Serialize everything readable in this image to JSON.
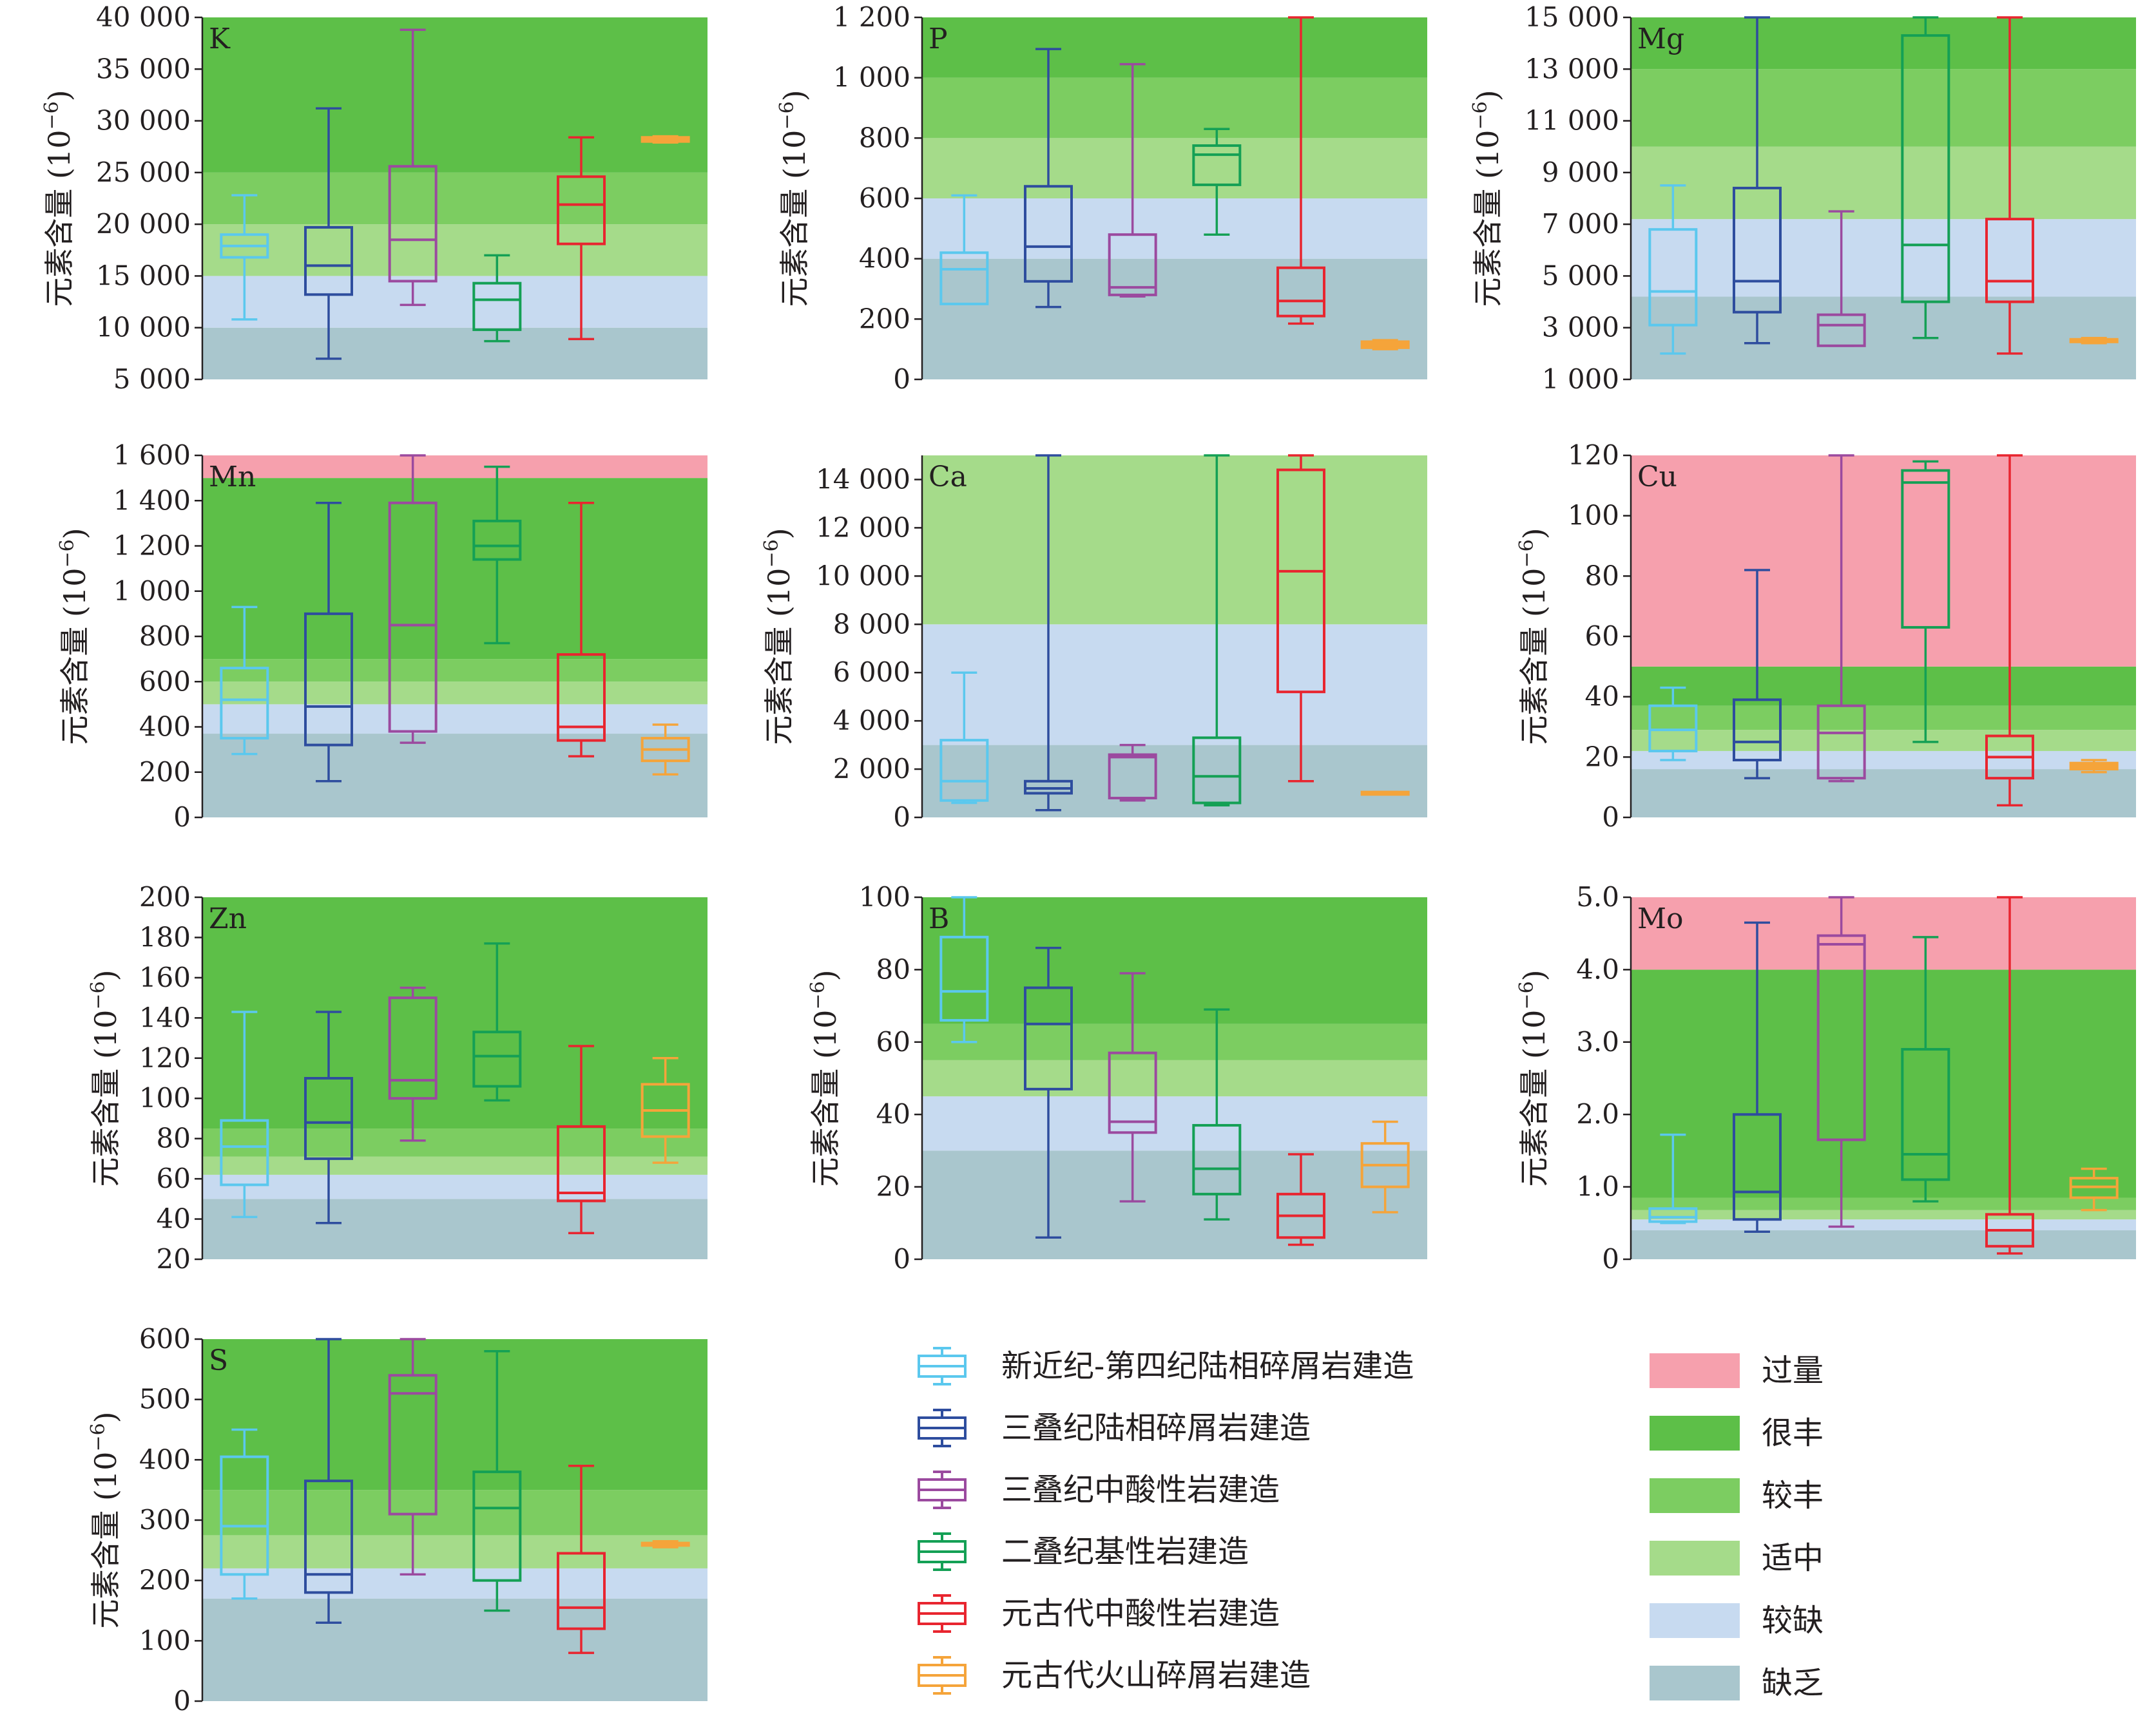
{
  "figure": {
    "ylabel_text": "元素含量 (10",
    "ylabel_exp": "−6",
    "ylabel_close": ")"
  },
  "legend": {
    "formations": [
      {
        "label": "新近纪-第四纪陆相碎屑岩建造",
        "color": "#5bc8ee"
      },
      {
        "label": "三叠纪陆相碎屑岩建造",
        "color": "#2e4d9e"
      },
      {
        "label": "三叠纪中酸性岩建造",
        "color": "#9b4a9f"
      },
      {
        "label": "二叠纪基性岩建造",
        "color": "#14a055"
      },
      {
        "label": "元古代中酸性岩建造",
        "color": "#e8252f"
      },
      {
        "label": "元古代火山碎屑岩建造",
        "color": "#f5a43a"
      }
    ],
    "grades": [
      {
        "label": "过量",
        "color": "#f6a0ad"
      },
      {
        "label": "很丰",
        "color": "#5dbf48"
      },
      {
        "label": "较丰",
        "color": "#7ccd61"
      },
      {
        "label": "适中",
        "color": "#a5db8a"
      },
      {
        "label": "较缺",
        "color": "#c7daf0"
      },
      {
        "label": "缺乏",
        "color": "#a9c6cd"
      }
    ]
  },
  "chart_data": [
    {
      "type": "box",
      "element": "K",
      "ylim": [
        5000,
        40000
      ],
      "yticks": [
        5000,
        10000,
        15000,
        20000,
        25000,
        30000,
        35000,
        40000
      ],
      "ytick_labels": [
        "5 000",
        "10 000",
        "15 000",
        "20 000",
        "25 000",
        "30 000",
        "35 000",
        "40 000"
      ],
      "bands": [
        [
          "缺乏",
          5000,
          10000
        ],
        [
          "较缺",
          10000,
          15000
        ],
        [
          "适中",
          15000,
          20000
        ],
        [
          "较丰",
          20000,
          25000
        ],
        [
          "很丰",
          25000,
          40000
        ]
      ],
      "boxes": [
        {
          "formation": 0,
          "min": 10800,
          "q1": 16800,
          "median": 17900,
          "q3": 19000,
          "max": 22800
        },
        {
          "formation": 1,
          "min": 7000,
          "q1": 13200,
          "median": 16000,
          "q3": 19700,
          "max": 31200
        },
        {
          "formation": 2,
          "min": 12200,
          "q1": 14500,
          "median": 18500,
          "q3": 25600,
          "max": 38800
        },
        {
          "formation": 3,
          "min": 8700,
          "q1": 9800,
          "median": 12700,
          "q3": 14300,
          "max": 17000
        },
        {
          "formation": 4,
          "min": 8900,
          "q1": 18100,
          "median": 21900,
          "q3": 24600,
          "max": 28400
        },
        {
          "formation": 5,
          "min": 27900,
          "q1": 28000,
          "median": 28200,
          "q3": 28400,
          "max": 28500
        }
      ]
    },
    {
      "type": "box",
      "element": "P",
      "ylim": [
        0,
        1200
      ],
      "yticks": [
        0,
        200,
        400,
        600,
        800,
        1000,
        1200
      ],
      "ytick_labels": [
        "0",
        "200",
        "400",
        "600",
        "800",
        "1 000",
        "1 200"
      ],
      "bands": [
        [
          "缺乏",
          0,
          400
        ],
        [
          "较缺",
          400,
          600
        ],
        [
          "适中",
          600,
          800
        ],
        [
          "较丰",
          800,
          1000
        ],
        [
          "很丰",
          1000,
          1200
        ]
      ],
      "boxes": [
        {
          "formation": 0,
          "min": 250,
          "q1": 250,
          "median": 365,
          "q3": 420,
          "max": 610
        },
        {
          "formation": 1,
          "min": 240,
          "q1": 325,
          "median": 440,
          "q3": 640,
          "max": 1095
        },
        {
          "formation": 2,
          "min": 275,
          "q1": 280,
          "median": 305,
          "q3": 480,
          "max": 1045
        },
        {
          "formation": 3,
          "min": 480,
          "q1": 645,
          "median": 745,
          "q3": 775,
          "max": 830
        },
        {
          "formation": 4,
          "min": 185,
          "q1": 210,
          "median": 260,
          "q3": 370,
          "max": 1200
        },
        {
          "formation": 5,
          "min": 100,
          "q1": 105,
          "median": 115,
          "q3": 125,
          "max": 130
        }
      ]
    },
    {
      "type": "box",
      "element": "Mg",
      "ylim": [
        1000,
        15000
      ],
      "yticks": [
        1000,
        3000,
        5000,
        7000,
        9000,
        11000,
        13000,
        15000
      ],
      "ytick_labels": [
        "1 000",
        "3 000",
        "5 000",
        "7 000",
        "9 000",
        "11 000",
        "13 000",
        "15 000"
      ],
      "bands": [
        [
          "缺乏",
          1000,
          4200
        ],
        [
          "较缺",
          4200,
          7200
        ],
        [
          "适中",
          7200,
          10000
        ],
        [
          "较丰",
          10000,
          13000
        ],
        [
          "很丰",
          13000,
          15000
        ]
      ],
      "boxes": [
        {
          "formation": 0,
          "min": 2000,
          "q1": 3100,
          "median": 4400,
          "q3": 6800,
          "max": 8500
        },
        {
          "formation": 1,
          "min": 2400,
          "q1": 3600,
          "median": 4800,
          "q3": 8400,
          "max": 15000
        },
        {
          "formation": 2,
          "min": 2300,
          "q1": 2300,
          "median": 3100,
          "q3": 3500,
          "max": 7500
        },
        {
          "formation": 3,
          "min": 2600,
          "q1": 4000,
          "median": 6200,
          "q3": 14300,
          "max": 15000
        },
        {
          "formation": 4,
          "min": 2000,
          "q1": 4000,
          "median": 4800,
          "q3": 7200,
          "max": 15000
        },
        {
          "formation": 5,
          "min": 2400,
          "q1": 2450,
          "median": 2500,
          "q3": 2550,
          "max": 2600
        }
      ]
    },
    {
      "type": "box",
      "element": "Mn",
      "ylim": [
        0,
        1600
      ],
      "yticks": [
        0,
        200,
        400,
        600,
        800,
        1000,
        1200,
        1400,
        1600
      ],
      "ytick_labels": [
        "0",
        "200",
        "400",
        "600",
        "800",
        "1 000",
        "1 200",
        "1 400",
        "1 600"
      ],
      "bands": [
        [
          "缺乏",
          0,
          370
        ],
        [
          "较缺",
          370,
          500
        ],
        [
          "适中",
          500,
          600
        ],
        [
          "较丰",
          600,
          700
        ],
        [
          "很丰",
          700,
          1500
        ],
        [
          "过量",
          1500,
          1600
        ]
      ],
      "boxes": [
        {
          "formation": 0,
          "min": 280,
          "q1": 350,
          "median": 520,
          "q3": 660,
          "max": 930
        },
        {
          "formation": 1,
          "min": 160,
          "q1": 320,
          "median": 490,
          "q3": 900,
          "max": 1390
        },
        {
          "formation": 2,
          "min": 330,
          "q1": 380,
          "median": 850,
          "q3": 1390,
          "max": 1600
        },
        {
          "formation": 3,
          "min": 770,
          "q1": 1140,
          "median": 1200,
          "q3": 1310,
          "max": 1550
        },
        {
          "formation": 4,
          "min": 270,
          "q1": 340,
          "median": 400,
          "q3": 720,
          "max": 1390
        },
        {
          "formation": 5,
          "min": 190,
          "q1": 250,
          "median": 300,
          "q3": 350,
          "max": 410
        }
      ]
    },
    {
      "type": "box",
      "element": "Ca",
      "ylim": [
        0,
        15000
      ],
      "yticks": [
        0,
        2000,
        4000,
        6000,
        8000,
        10000,
        12000,
        14000
      ],
      "ytick_labels": [
        "0",
        "2 000",
        "4 000",
        "6 000",
        "8 000",
        "10 000",
        "12 000",
        "14 000"
      ],
      "bands": [
        [
          "缺乏",
          0,
          3000
        ],
        [
          "较缺",
          3000,
          8000
        ],
        [
          "适中",
          8000,
          15000
        ]
      ],
      "boxes": [
        {
          "formation": 0,
          "min": 600,
          "q1": 700,
          "median": 1500,
          "q3": 3200,
          "max": 6000
        },
        {
          "formation": 1,
          "min": 300,
          "q1": 1000,
          "median": 1200,
          "q3": 1500,
          "max": 15000
        },
        {
          "formation": 2,
          "min": 700,
          "q1": 800,
          "median": 2500,
          "q3": 2600,
          "max": 3000
        },
        {
          "formation": 3,
          "min": 500,
          "q1": 600,
          "median": 1700,
          "q3": 3300,
          "max": 15000
        },
        {
          "formation": 4,
          "min": 1500,
          "q1": 5200,
          "median": 10200,
          "q3": 14400,
          "max": 15000
        },
        {
          "formation": 5,
          "min": 950,
          "q1": 950,
          "median": 1000,
          "q3": 1050,
          "max": 1050
        }
      ]
    },
    {
      "type": "box",
      "element": "Cu",
      "ylim": [
        0,
        120
      ],
      "yticks": [
        0,
        20,
        40,
        60,
        80,
        100,
        120
      ],
      "ytick_labels": [
        "0",
        "20",
        "40",
        "60",
        "80",
        "100",
        "120"
      ],
      "bands": [
        [
          "缺乏",
          0,
          16
        ],
        [
          "较缺",
          16,
          22
        ],
        [
          "适中",
          22,
          29
        ],
        [
          "较丰",
          29,
          37
        ],
        [
          "很丰",
          37,
          50
        ],
        [
          "过量",
          50,
          120
        ]
      ],
      "boxes": [
        {
          "formation": 0,
          "min": 19,
          "q1": 22,
          "median": 29,
          "q3": 37,
          "max": 43
        },
        {
          "formation": 1,
          "min": 13,
          "q1": 19,
          "median": 25,
          "q3": 39,
          "max": 82
        },
        {
          "formation": 2,
          "min": 12,
          "q1": 13,
          "median": 28,
          "q3": 37,
          "max": 120
        },
        {
          "formation": 3,
          "min": 25,
          "q1": 63,
          "median": 111,
          "q3": 115,
          "max": 118
        },
        {
          "formation": 4,
          "min": 4,
          "q1": 13,
          "median": 20,
          "q3": 27,
          "max": 120
        },
        {
          "formation": 5,
          "min": 15,
          "q1": 16,
          "median": 17,
          "q3": 18,
          "max": 19
        }
      ]
    },
    {
      "type": "box",
      "element": "Zn",
      "ylim": [
        20,
        200
      ],
      "yticks": [
        20,
        40,
        60,
        80,
        100,
        120,
        140,
        160,
        180,
        200
      ],
      "ytick_labels": [
        "20",
        "40",
        "60",
        "80",
        "100",
        "120",
        "140",
        "160",
        "180",
        "200"
      ],
      "bands": [
        [
          "缺乏",
          20,
          50
        ],
        [
          "较缺",
          50,
          62
        ],
        [
          "适中",
          62,
          71
        ],
        [
          "较丰",
          71,
          85
        ],
        [
          "很丰",
          85,
          200
        ]
      ],
      "boxes": [
        {
          "formation": 0,
          "min": 41,
          "q1": 57,
          "median": 76,
          "q3": 89,
          "max": 143
        },
        {
          "formation": 1,
          "min": 38,
          "q1": 70,
          "median": 88,
          "q3": 110,
          "max": 143
        },
        {
          "formation": 2,
          "min": 79,
          "q1": 100,
          "median": 109,
          "q3": 150,
          "max": 155
        },
        {
          "formation": 3,
          "min": 99,
          "q1": 106,
          "median": 121,
          "q3": 133,
          "max": 177
        },
        {
          "formation": 4,
          "min": 33,
          "q1": 49,
          "median": 53,
          "q3": 86,
          "max": 126
        },
        {
          "formation": 5,
          "min": 68,
          "q1": 81,
          "median": 94,
          "q3": 107,
          "max": 120
        }
      ]
    },
    {
      "type": "box",
      "element": "B",
      "ylim": [
        0,
        100
      ],
      "yticks": [
        0,
        20,
        40,
        60,
        80,
        100
      ],
      "ytick_labels": [
        "0",
        "20",
        "40",
        "60",
        "80",
        "100"
      ],
      "bands": [
        [
          "缺乏",
          0,
          30
        ],
        [
          "较缺",
          30,
          45
        ],
        [
          "适中",
          45,
          55
        ],
        [
          "较丰",
          55,
          65
        ],
        [
          "很丰",
          65,
          100
        ]
      ],
      "boxes": [
        {
          "formation": 0,
          "min": 60,
          "q1": 66,
          "median": 74,
          "q3": 89,
          "max": 100
        },
        {
          "formation": 1,
          "min": 6,
          "q1": 47,
          "median": 65,
          "q3": 75,
          "max": 86
        },
        {
          "formation": 2,
          "min": 16,
          "q1": 35,
          "median": 38,
          "q3": 57,
          "max": 79
        },
        {
          "formation": 3,
          "min": 11,
          "q1": 18,
          "median": 25,
          "q3": 37,
          "max": 69
        },
        {
          "formation": 4,
          "min": 4,
          "q1": 6,
          "median": 12,
          "q3": 18,
          "max": 29
        },
        {
          "formation": 5,
          "min": 13,
          "q1": 20,
          "median": 26,
          "q3": 32,
          "max": 38
        }
      ]
    },
    {
      "type": "box",
      "element": "Mo",
      "ylim": [
        0,
        5
      ],
      "yticks": [
        0,
        1,
        2,
        3,
        4,
        5
      ],
      "ytick_labels": [
        "0",
        "1.0",
        "2.0",
        "3.0",
        "4.0",
        "5.0"
      ],
      "bands": [
        [
          "缺乏",
          0,
          0.4
        ],
        [
          "较缺",
          0.4,
          0.55
        ],
        [
          "适中",
          0.55,
          0.68
        ],
        [
          "较丰",
          0.68,
          0.85
        ],
        [
          "很丰",
          0.85,
          4.0
        ],
        [
          "过量",
          4.0,
          5.0
        ]
      ],
      "boxes": [
        {
          "formation": 0,
          "min": 0.5,
          "q1": 0.52,
          "median": 0.58,
          "q3": 0.7,
          "max": 1.72
        },
        {
          "formation": 1,
          "min": 0.38,
          "q1": 0.55,
          "median": 0.93,
          "q3": 2.0,
          "max": 4.65
        },
        {
          "formation": 2,
          "min": 0.45,
          "q1": 1.65,
          "median": 4.35,
          "q3": 4.47,
          "max": 5.0
        },
        {
          "formation": 3,
          "min": 0.8,
          "q1": 1.1,
          "median": 1.45,
          "q3": 2.9,
          "max": 4.45
        },
        {
          "formation": 4,
          "min": 0.08,
          "q1": 0.18,
          "median": 0.4,
          "q3": 0.62,
          "max": 5.0
        },
        {
          "formation": 5,
          "min": 0.68,
          "q1": 0.85,
          "median": 1.0,
          "q3": 1.12,
          "max": 1.25
        }
      ]
    },
    {
      "type": "box",
      "element": "S",
      "ylim": [
        0,
        600
      ],
      "yticks": [
        0,
        100,
        200,
        300,
        400,
        500,
        600
      ],
      "ytick_labels": [
        "0",
        "100",
        "200",
        "300",
        "400",
        "500",
        "600"
      ],
      "bands": [
        [
          "缺乏",
          0,
          170
        ],
        [
          "较缺",
          170,
          220
        ],
        [
          "适中",
          220,
          275
        ],
        [
          "较丰",
          275,
          350
        ],
        [
          "很丰",
          350,
          600
        ]
      ],
      "boxes": [
        {
          "formation": 0,
          "min": 170,
          "q1": 210,
          "median": 290,
          "q3": 405,
          "max": 450
        },
        {
          "formation": 1,
          "min": 130,
          "q1": 180,
          "median": 210,
          "q3": 365,
          "max": 600
        },
        {
          "formation": 2,
          "min": 210,
          "q1": 310,
          "median": 510,
          "q3": 540,
          "max": 600
        },
        {
          "formation": 3,
          "min": 150,
          "q1": 200,
          "median": 320,
          "q3": 380,
          "max": 580
        },
        {
          "formation": 4,
          "min": 80,
          "q1": 120,
          "median": 155,
          "q3": 245,
          "max": 390
        },
        {
          "formation": 5,
          "min": 255,
          "q1": 258,
          "median": 260,
          "q3": 262,
          "max": 265
        }
      ]
    }
  ]
}
